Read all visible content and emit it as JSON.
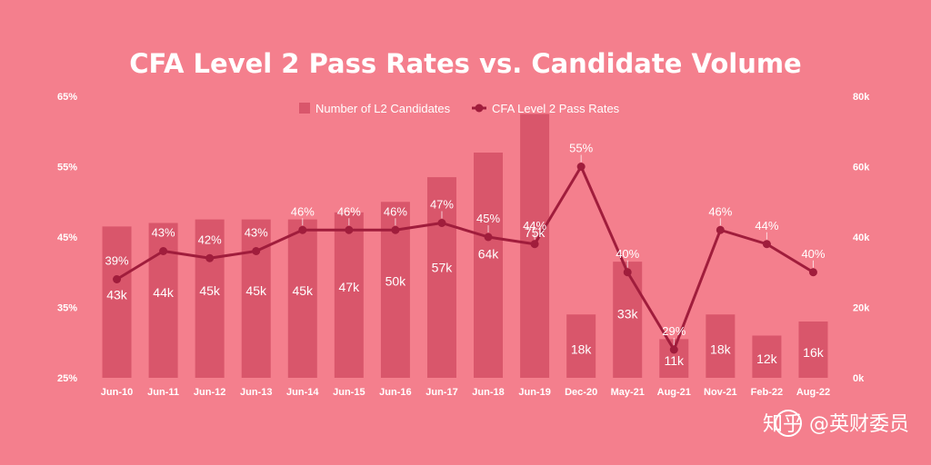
{
  "chart_data": {
    "type": "bar",
    "title": "CFA Level 2 Pass Rates vs. Candidate Volume",
    "categories": [
      "Jun-10",
      "Jun-11",
      "Jun-12",
      "Jun-13",
      "Jun-14",
      "Jun-15",
      "Jun-16",
      "Jun-17",
      "Jun-18",
      "Jun-19",
      "Dec-20",
      "May-21",
      "Aug-21",
      "Nov-21",
      "Feb-22",
      "Aug-22"
    ],
    "series": [
      {
        "name": "Number of L2 Candidates",
        "type": "bar",
        "axis": "right",
        "values": [
          43,
          44,
          45,
          45,
          45,
          47,
          50,
          57,
          64,
          75,
          18,
          33,
          11,
          18,
          12,
          16
        ],
        "labels": [
          "43k",
          "44k",
          "45k",
          "45k",
          "45k",
          "47k",
          "50k",
          "57k",
          "64k",
          "75k",
          "18k",
          "33k",
          "11k",
          "18k",
          "12k",
          "16k"
        ]
      },
      {
        "name": "CFA Level 2 Pass Rates",
        "type": "line",
        "axis": "left",
        "values": [
          39,
          43,
          42,
          43,
          46,
          46,
          46,
          47,
          45,
          44,
          55,
          40,
          29,
          46,
          44,
          40
        ],
        "labels": [
          "39%",
          "43%",
          "42%",
          "43%",
          "46%",
          "46%",
          "46%",
          "47%",
          "45%",
          "44%",
          "55%",
          "40%",
          "29%",
          "46%",
          "44%",
          "40%"
        ]
      }
    ],
    "y_left": {
      "ticks": [
        "65%",
        "55%",
        "45%",
        "35%",
        "25%"
      ],
      "values": [
        65,
        55,
        45,
        35,
        25
      ],
      "ylim": [
        25,
        65
      ]
    },
    "y_right": {
      "ticks": [
        "80k",
        "60k",
        "40k",
        "20k",
        "0k"
      ],
      "values": [
        80,
        60,
        40,
        20,
        0
      ],
      "ylim": [
        0,
        80
      ]
    },
    "legend_position": "top-center",
    "colors": {
      "background": "#f47f8d",
      "bar": "#d9566b",
      "line": "#a01d3c",
      "text": "#ffffff"
    }
  },
  "watermark": {
    "text": "知乎 @英财委员"
  }
}
